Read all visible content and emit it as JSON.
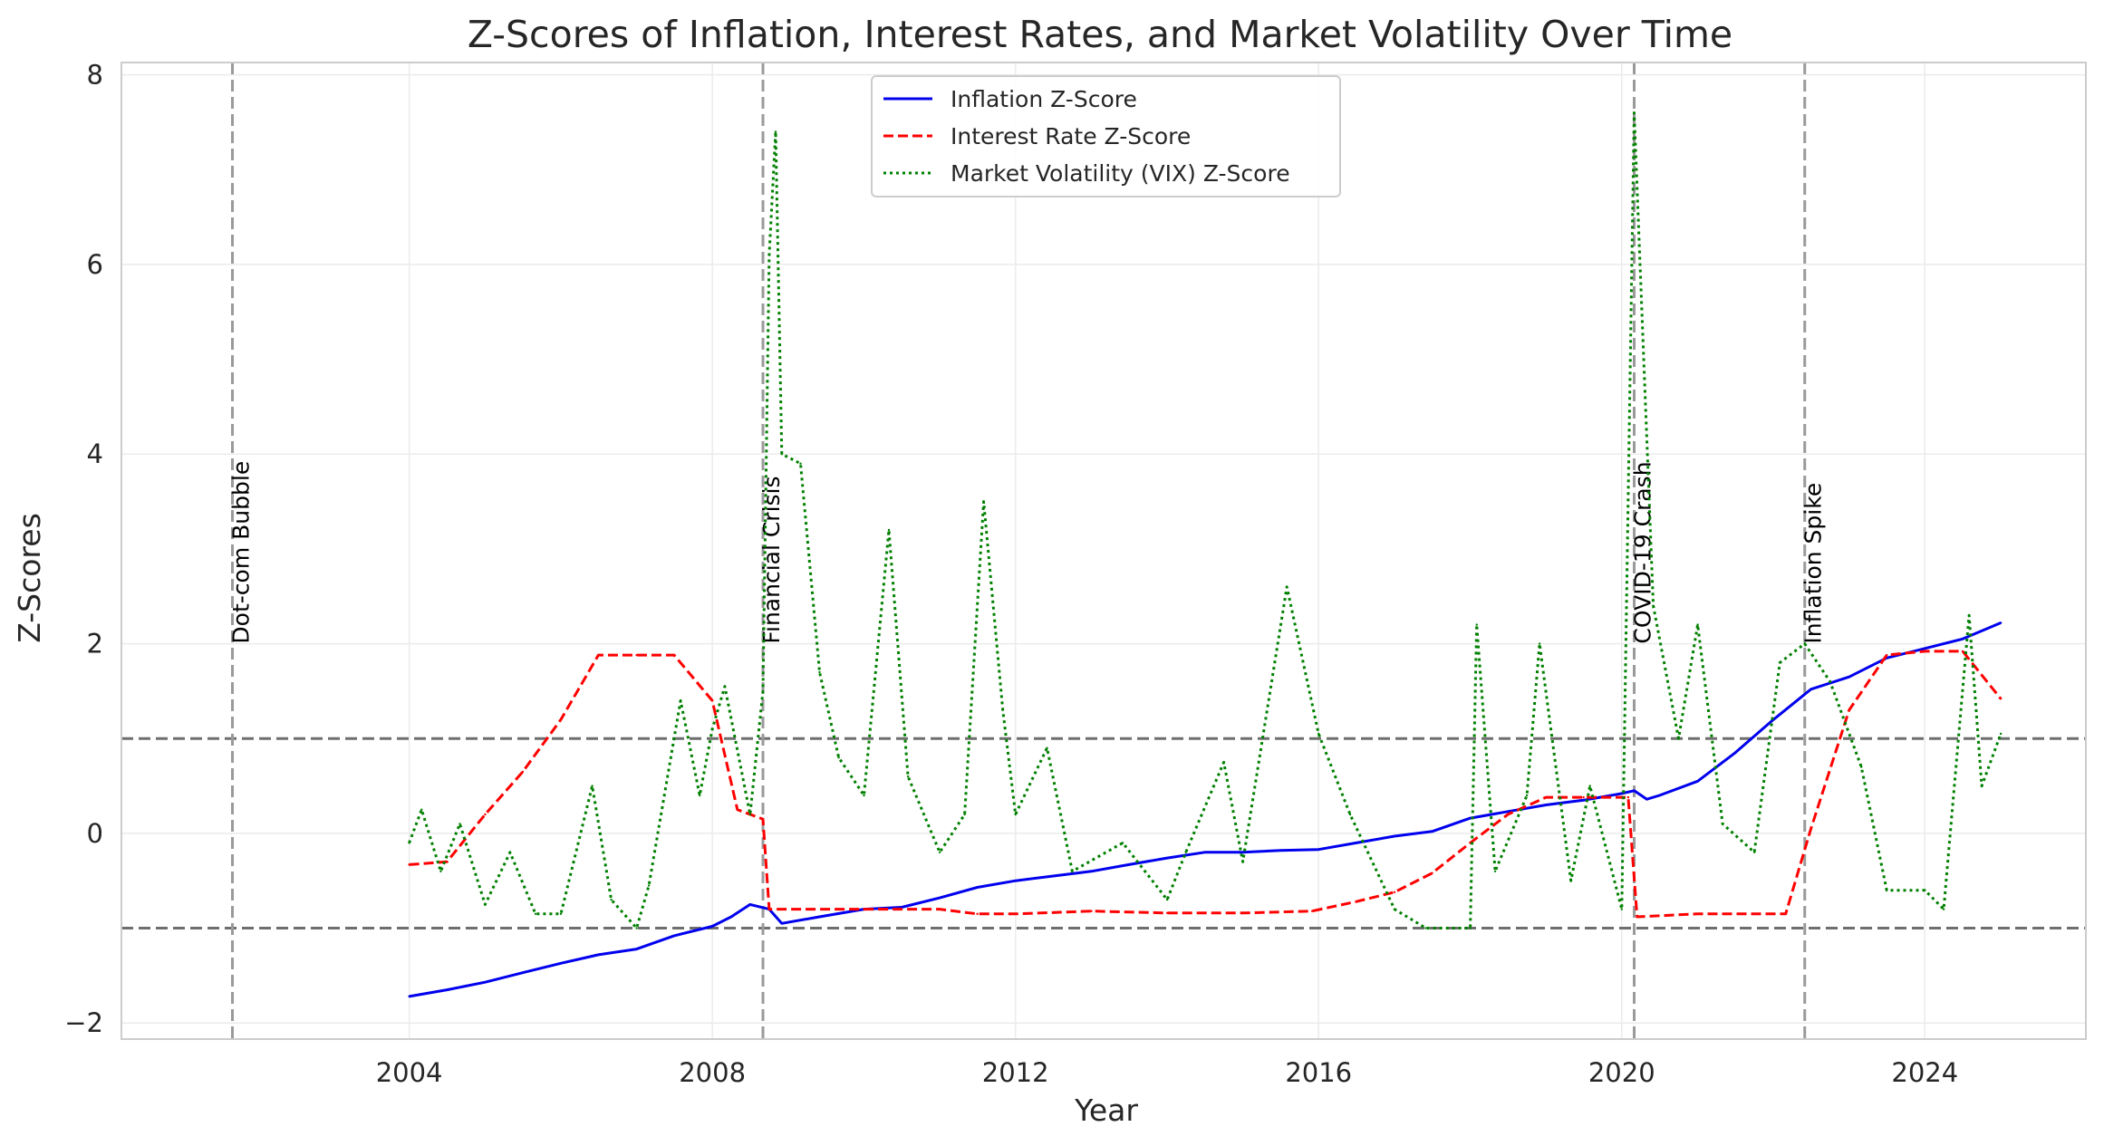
{
  "chart_data": {
    "type": "line",
    "title": "Z-Scores of Inflation, Interest Rates, and Market Volatility Over Time",
    "xlabel": "Year",
    "ylabel": "Z-Scores",
    "xlim": [
      "2000-03-15",
      "2026-02-15"
    ],
    "ylim": [
      -2.17,
      8.13
    ],
    "xticks": [
      {
        "date": "2004-01-01",
        "label": "2004"
      },
      {
        "date": "2008-01-01",
        "label": "2008"
      },
      {
        "date": "2012-01-01",
        "label": "2012"
      },
      {
        "date": "2016-01-01",
        "label": "2016"
      },
      {
        "date": "2020-01-01",
        "label": "2020"
      },
      {
        "date": "2024-01-01",
        "label": "2024"
      }
    ],
    "yticks": [
      {
        "value": -2,
        "label": "−2"
      },
      {
        "value": 0,
        "label": "0"
      },
      {
        "value": 2,
        "label": "2"
      },
      {
        "value": 4,
        "label": "4"
      },
      {
        "value": 6,
        "label": "6"
      },
      {
        "value": 8,
        "label": "8"
      }
    ],
    "grid": true,
    "legend_position": "top-center",
    "thresholds": [
      1,
      -1
    ],
    "events": [
      {
        "date": "2001-09-01",
        "label": "Dot-com Bubble"
      },
      {
        "date": "2008-09-01",
        "label": "Financial Crisis"
      },
      {
        "date": "2020-03-01",
        "label": "COVID-19 Crash"
      },
      {
        "date": "2022-06-01",
        "label": "Inflation Spike"
      }
    ],
    "series": [
      {
        "name": "Inflation Z-Score",
        "color": "#0000ee",
        "style": "solid",
        "points": [
          [
            "2004-01-01",
            -1.72
          ],
          [
            "2004-07-01",
            -1.65
          ],
          [
            "2005-01-01",
            -1.57
          ],
          [
            "2005-07-01",
            -1.47
          ],
          [
            "2006-01-01",
            -1.37
          ],
          [
            "2006-07-01",
            -1.28
          ],
          [
            "2007-01-01",
            -1.22
          ],
          [
            "2007-07-01",
            -1.08
          ],
          [
            "2008-01-01",
            -0.98
          ],
          [
            "2008-04-01",
            -0.88
          ],
          [
            "2008-07-01",
            -0.75
          ],
          [
            "2008-10-01",
            -0.8
          ],
          [
            "2008-12-01",
            -0.95
          ],
          [
            "2009-06-01",
            -0.88
          ],
          [
            "2010-01-01",
            -0.8
          ],
          [
            "2010-07-01",
            -0.78
          ],
          [
            "2011-01-01",
            -0.68
          ],
          [
            "2011-07-01",
            -0.57
          ],
          [
            "2012-01-01",
            -0.5
          ],
          [
            "2012-07-01",
            -0.45
          ],
          [
            "2013-01-01",
            -0.4
          ],
          [
            "2013-07-01",
            -0.33
          ],
          [
            "2014-01-01",
            -0.26
          ],
          [
            "2014-07-01",
            -0.2
          ],
          [
            "2015-01-01",
            -0.2
          ],
          [
            "2015-07-01",
            -0.18
          ],
          [
            "2016-01-01",
            -0.17
          ],
          [
            "2016-07-01",
            -0.1
          ],
          [
            "2017-01-01",
            -0.03
          ],
          [
            "2017-07-01",
            0.02
          ],
          [
            "2018-01-01",
            0.16
          ],
          [
            "2018-07-01",
            0.23
          ],
          [
            "2019-01-01",
            0.3
          ],
          [
            "2019-07-01",
            0.35
          ],
          [
            "2020-01-01",
            0.42
          ],
          [
            "2020-03-01",
            0.45
          ],
          [
            "2020-05-01",
            0.36
          ],
          [
            "2020-07-01",
            0.4
          ],
          [
            "2021-01-01",
            0.55
          ],
          [
            "2021-07-01",
            0.85
          ],
          [
            "2022-01-01",
            1.2
          ],
          [
            "2022-07-01",
            1.52
          ],
          [
            "2023-01-01",
            1.65
          ],
          [
            "2023-07-01",
            1.85
          ],
          [
            "2024-01-01",
            1.95
          ],
          [
            "2024-07-01",
            2.05
          ],
          [
            "2025-01-01",
            2.22
          ]
        ]
      },
      {
        "name": "Interest Rate Z-Score",
        "color": "#ff0000",
        "style": "dashed",
        "points": [
          [
            "2004-01-01",
            -0.33
          ],
          [
            "2004-07-01",
            -0.3
          ],
          [
            "2005-01-01",
            0.2
          ],
          [
            "2005-07-01",
            0.65
          ],
          [
            "2006-01-01",
            1.2
          ],
          [
            "2006-07-01",
            1.88
          ],
          [
            "2007-01-01",
            1.88
          ],
          [
            "2007-07-01",
            1.88
          ],
          [
            "2008-01-01",
            1.4
          ],
          [
            "2008-05-01",
            0.25
          ],
          [
            "2008-09-01",
            0.15
          ],
          [
            "2008-10-01",
            -0.8
          ],
          [
            "2010-01-01",
            -0.8
          ],
          [
            "2011-01-01",
            -0.8
          ],
          [
            "2011-07-01",
            -0.85
          ],
          [
            "2012-01-01",
            -0.85
          ],
          [
            "2013-01-01",
            -0.82
          ],
          [
            "2014-01-01",
            -0.84
          ],
          [
            "2015-01-01",
            -0.84
          ],
          [
            "2015-12-01",
            -0.82
          ],
          [
            "2016-07-01",
            -0.72
          ],
          [
            "2017-01-01",
            -0.62
          ],
          [
            "2017-07-01",
            -0.42
          ],
          [
            "2018-01-01",
            -0.1
          ],
          [
            "2018-07-01",
            0.2
          ],
          [
            "2019-01-01",
            0.38
          ],
          [
            "2019-07-01",
            0.38
          ],
          [
            "2020-02-01",
            0.38
          ],
          [
            "2020-03-15",
            -0.88
          ],
          [
            "2021-01-01",
            -0.85
          ],
          [
            "2022-03-01",
            -0.85
          ],
          [
            "2022-07-01",
            0.05
          ],
          [
            "2023-01-01",
            1.3
          ],
          [
            "2023-07-01",
            1.88
          ],
          [
            "2024-01-01",
            1.92
          ],
          [
            "2024-07-01",
            1.92
          ],
          [
            "2025-01-01",
            1.42
          ]
        ]
      },
      {
        "name": "Market Volatility (VIX) Z-Score",
        "color": "#008000",
        "style": "dotted",
        "points": [
          [
            "2004-01-01",
            -0.1
          ],
          [
            "2004-03-01",
            0.25
          ],
          [
            "2004-06-01",
            -0.4
          ],
          [
            "2004-09-01",
            0.1
          ],
          [
            "2005-01-01",
            -0.75
          ],
          [
            "2005-05-01",
            -0.2
          ],
          [
            "2005-09-01",
            -0.85
          ],
          [
            "2006-01-01",
            -0.85
          ],
          [
            "2006-06-01",
            0.5
          ],
          [
            "2006-09-01",
            -0.7
          ],
          [
            "2007-01-01",
            -1.0
          ],
          [
            "2007-03-01",
            -0.55
          ],
          [
            "2007-08-01",
            1.4
          ],
          [
            "2007-11-01",
            0.4
          ],
          [
            "2008-01-01",
            1.1
          ],
          [
            "2008-03-01",
            1.55
          ],
          [
            "2008-07-01",
            0.2
          ],
          [
            "2008-09-01",
            1.5
          ],
          [
            "2008-10-01",
            6.1
          ],
          [
            "2008-11-01",
            7.4
          ],
          [
            "2008-12-01",
            4.0
          ],
          [
            "2009-03-01",
            3.9
          ],
          [
            "2009-06-01",
            1.7
          ],
          [
            "2009-09-01",
            0.8
          ],
          [
            "2010-01-01",
            0.4
          ],
          [
            "2010-05-01",
            3.2
          ],
          [
            "2010-08-01",
            0.6
          ],
          [
            "2011-01-01",
            -0.2
          ],
          [
            "2011-05-01",
            0.2
          ],
          [
            "2011-08-01",
            3.5
          ],
          [
            "2011-11-01",
            1.3
          ],
          [
            "2012-01-01",
            0.2
          ],
          [
            "2012-06-01",
            0.9
          ],
          [
            "2012-10-01",
            -0.4
          ],
          [
            "2013-06-01",
            -0.1
          ],
          [
            "2014-01-01",
            -0.7
          ],
          [
            "2014-04-01",
            -0.2
          ],
          [
            "2014-10-01",
            0.75
          ],
          [
            "2015-01-01",
            -0.3
          ],
          [
            "2015-08-01",
            2.6
          ],
          [
            "2016-01-01",
            1.05
          ],
          [
            "2016-06-01",
            0.2
          ],
          [
            "2017-01-01",
            -0.8
          ],
          [
            "2017-06-01",
            -1.0
          ],
          [
            "2018-01-01",
            -1.0
          ],
          [
            "2018-02-01",
            2.2
          ],
          [
            "2018-05-01",
            -0.4
          ],
          [
            "2018-10-01",
            0.4
          ],
          [
            "2018-12-01",
            2.0
          ],
          [
            "2019-05-01",
            -0.5
          ],
          [
            "2019-08-01",
            0.5
          ],
          [
            "2020-01-01",
            -0.8
          ],
          [
            "2020-03-01",
            7.6
          ],
          [
            "2020-06-01",
            2.4
          ],
          [
            "2020-10-01",
            1.0
          ],
          [
            "2021-01-01",
            2.2
          ],
          [
            "2021-05-01",
            0.1
          ],
          [
            "2021-10-01",
            -0.2
          ],
          [
            "2022-02-01",
            1.8
          ],
          [
            "2022-06-01",
            2.0
          ],
          [
            "2022-10-01",
            1.6
          ],
          [
            "2023-03-01",
            0.7
          ],
          [
            "2023-07-01",
            -0.6
          ],
          [
            "2024-01-01",
            -0.6
          ],
          [
            "2024-04-01",
            -0.8
          ],
          [
            "2024-08-01",
            2.3
          ],
          [
            "2024-10-01",
            0.5
          ],
          [
            "2025-01-01",
            1.05
          ]
        ]
      }
    ]
  }
}
